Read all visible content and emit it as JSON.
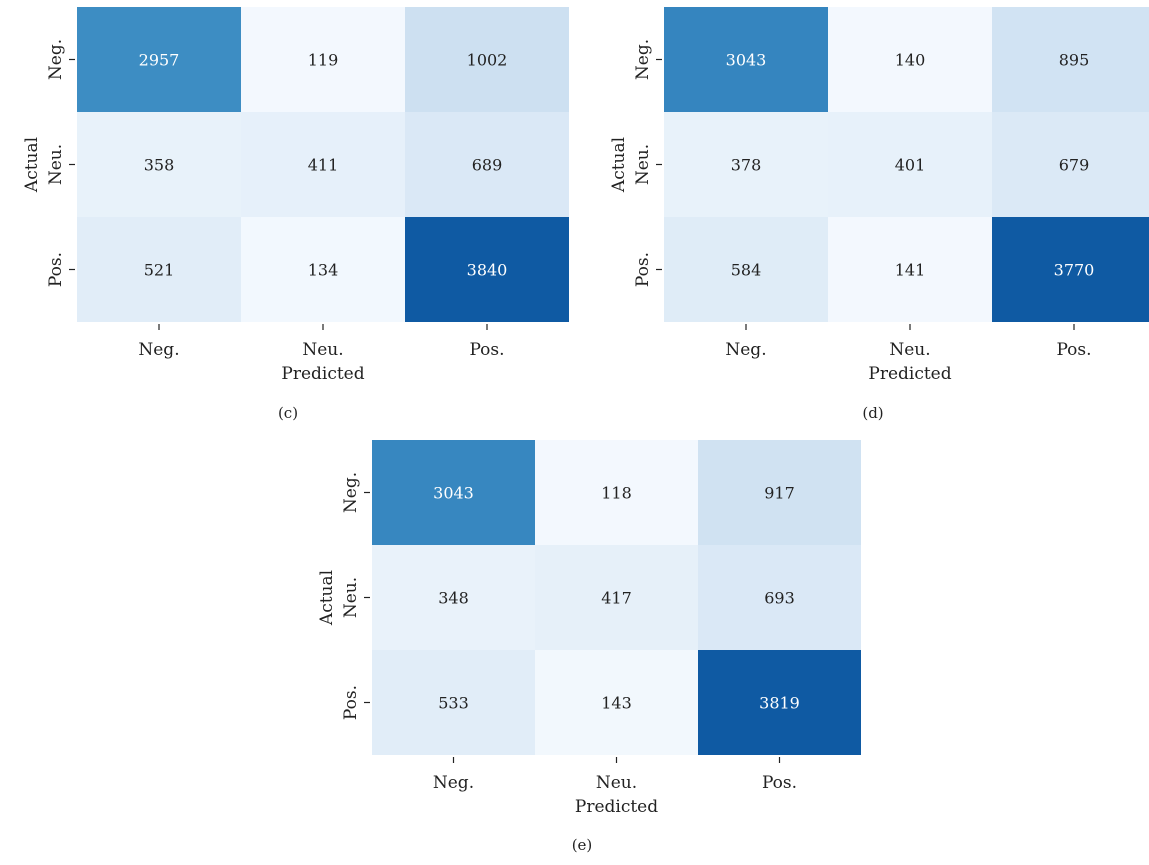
{
  "chart_data": [
    {
      "type": "heatmap",
      "panel_label": "(c)",
      "xlabel": "Predicted",
      "ylabel": "Actual",
      "x_categories": [
        "Neg.",
        "Neu.",
        "Pos."
      ],
      "y_categories": [
        "Neg.",
        "Neu.",
        "Pos."
      ],
      "values": [
        [
          2957,
          119,
          1002
        ],
        [
          358,
          411,
          689
        ],
        [
          521,
          134,
          3840
        ]
      ],
      "colormap": "Blues",
      "value_range": [
        119,
        3840
      ]
    },
    {
      "type": "heatmap",
      "panel_label": "(d)",
      "xlabel": "Predicted",
      "ylabel": "Actual",
      "x_categories": [
        "Neg.",
        "Neu.",
        "Pos."
      ],
      "y_categories": [
        "Neg.",
        "Neu.",
        "Pos."
      ],
      "values": [
        [
          3043,
          140,
          895
        ],
        [
          378,
          401,
          679
        ],
        [
          584,
          141,
          3770
        ]
      ],
      "colormap": "Blues",
      "value_range": [
        140,
        3770
      ]
    },
    {
      "type": "heatmap",
      "panel_label": "(e)",
      "xlabel": "Predicted",
      "ylabel": "Actual",
      "x_categories": [
        "Neg.",
        "Neu.",
        "Pos."
      ],
      "y_categories": [
        "Neg.",
        "Neu.",
        "Pos."
      ],
      "values": [
        [
          3043,
          118,
          917
        ],
        [
          348,
          417,
          693
        ],
        [
          533,
          143,
          3819
        ]
      ],
      "colormap": "Blues",
      "value_range": [
        118,
        3819
      ]
    }
  ]
}
